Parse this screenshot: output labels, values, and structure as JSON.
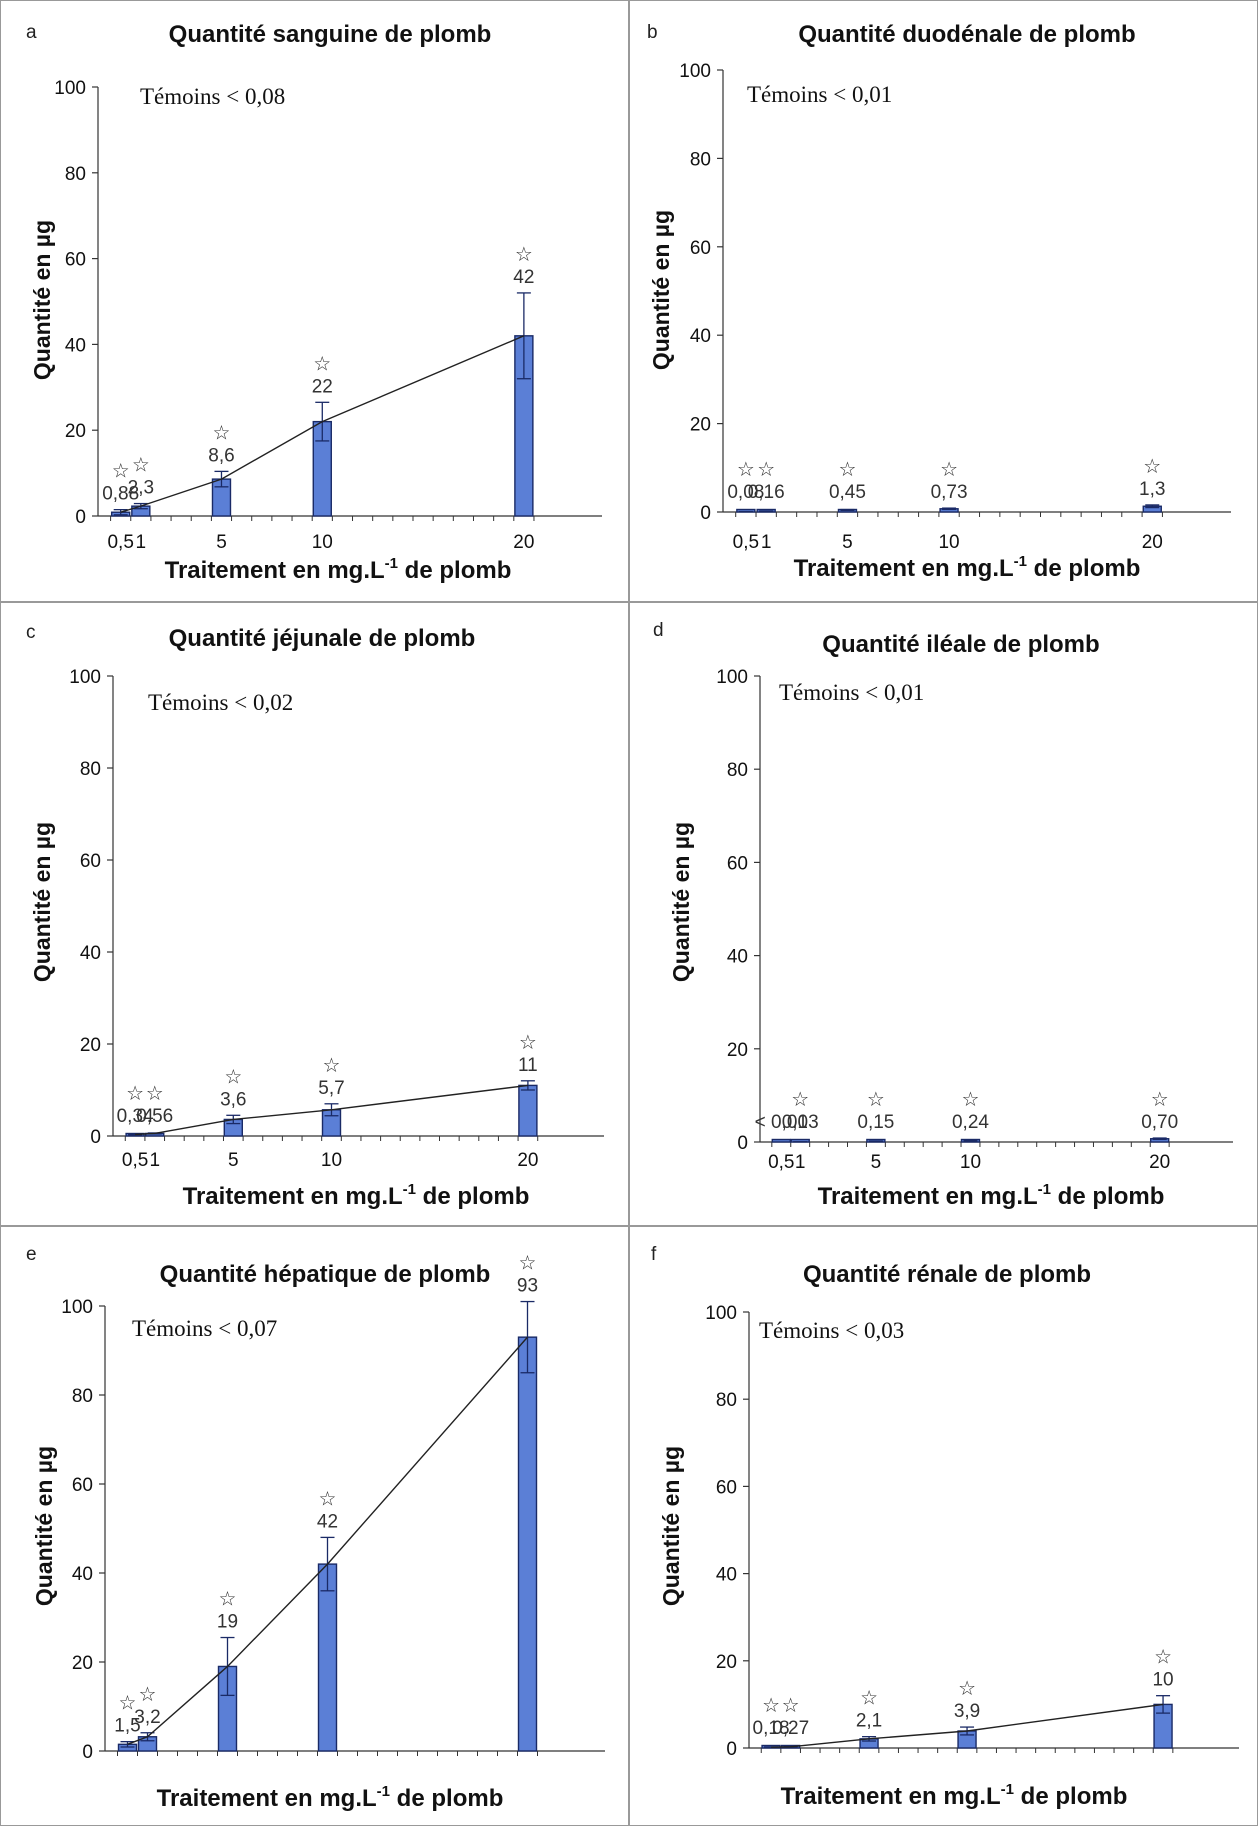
{
  "chart_data": [
    {
      "panel": "a",
      "type": "bar",
      "title": "Quantité sanguine de plomb",
      "ylabel": "Quantité en µg",
      "xlabel": "Traitement en mg.L-1 de plomb",
      "xlabel_main": "Traitement en mg.L",
      "xlabel_sup": "-1",
      "xlabel_tail": " de plomb",
      "ylim": [
        0,
        100
      ],
      "yticks": [
        0,
        20,
        40,
        60,
        80,
        100
      ],
      "x_tick_labels": [
        "0,5",
        "1",
        "5",
        "10",
        "20"
      ],
      "control_note": "Témoins < 0,08",
      "x": [
        0.5,
        1,
        5,
        10,
        20
      ],
      "values": [
        0.88,
        2.3,
        8.6,
        22,
        42
      ],
      "errors": [
        0.6,
        0.6,
        1.8,
        4.5,
        10
      ],
      "data_labels": [
        "0,88",
        "2,3",
        "8,6",
        "22",
        "42"
      ],
      "significance": [
        "☆",
        "☆",
        "☆",
        "☆",
        "☆"
      ],
      "trend_line": true
    },
    {
      "panel": "b",
      "type": "bar",
      "title": "Quantité duodénale de plomb",
      "ylabel": "Quantité en µg",
      "xlabel": "Traitement en mg.L-1 de plomb",
      "xlabel_main": "Traitement en mg.L",
      "xlabel_sup": "-1",
      "xlabel_tail": " de plomb",
      "ylim": [
        0,
        100
      ],
      "yticks": [
        0,
        20,
        40,
        60,
        80,
        100
      ],
      "x_tick_labels": [
        "0,5",
        "1",
        "5",
        "10",
        "20"
      ],
      "control_note": "Témoins < 0,01",
      "x": [
        0.5,
        1,
        5,
        10,
        20
      ],
      "values": [
        0.08,
        0.16,
        0.45,
        0.73,
        1.3
      ],
      "errors": [
        0.02,
        0.04,
        0.1,
        0.15,
        0.3
      ],
      "data_labels": [
        "0,08",
        "0,16",
        "0,45",
        "0,73",
        "1,3"
      ],
      "significance": [
        "☆",
        "☆",
        "☆",
        "☆",
        "☆"
      ],
      "trend_line": false
    },
    {
      "panel": "c",
      "type": "bar",
      "title": "Quantité jéjunale de plomb",
      "ylabel": "Quantité en µg",
      "xlabel": "Traitement en mg.L-1 de plomb",
      "xlabel_main": "Traitement en mg.L",
      "xlabel_sup": "-1",
      "xlabel_tail": " de plomb",
      "ylim": [
        0,
        100
      ],
      "yticks": [
        0,
        20,
        40,
        60,
        80,
        100
      ],
      "x_tick_labels": [
        "0,5",
        "1",
        "5",
        "10",
        "20"
      ],
      "control_note": "Témoins < 0,02",
      "x": [
        0.5,
        1,
        5,
        10,
        20
      ],
      "values": [
        0.34,
        0.56,
        3.6,
        5.7,
        11
      ],
      "errors": [
        0.1,
        0.1,
        0.9,
        1.3,
        1.0
      ],
      "data_labels": [
        "0,34",
        "0,56",
        "3,6",
        "5,7",
        "11"
      ],
      "significance": [
        "☆",
        "☆",
        "☆",
        "☆",
        "☆"
      ],
      "trend_line": true
    },
    {
      "panel": "d",
      "type": "bar",
      "title": "Quantité iléale de plomb",
      "ylabel": "Quantité en µg",
      "xlabel": "Traitement en mg.L-1 de plomb",
      "xlabel_main": "Traitement en mg.L",
      "xlabel_sup": "-1",
      "xlabel_tail": " de plomb",
      "ylim": [
        0,
        100
      ],
      "yticks": [
        0,
        20,
        40,
        60,
        80,
        100
      ],
      "x_tick_labels": [
        "0,5",
        "1",
        "5",
        "10",
        "20"
      ],
      "control_note": "Témoins < 0,01",
      "x": [
        0.5,
        1,
        5,
        10,
        20
      ],
      "values": [
        0.01,
        0.03,
        0.15,
        0.24,
        0.7
      ],
      "errors": [
        0,
        0.01,
        0.03,
        0.05,
        0.15
      ],
      "data_labels": [
        "< 0,01",
        "0,03",
        "0,15",
        "0,24",
        "0,70"
      ],
      "significance": [
        "",
        "☆",
        "☆",
        "☆",
        "☆"
      ],
      "trend_line": false
    },
    {
      "panel": "e",
      "type": "bar",
      "title": "Quantité hépatique de plomb",
      "ylabel": "Quantité en µg",
      "xlabel": "Traitement en mg.L-1 de plomb",
      "xlabel_main": "Traitement en mg.L",
      "xlabel_sup": "-1",
      "xlabel_tail": " de plomb",
      "ylim": [
        0,
        100
      ],
      "yticks": [
        0,
        20,
        40,
        60,
        80,
        100
      ],
      "x_tick_labels": [],
      "control_note": "Témoins < 0,07",
      "x": [
        0.5,
        1,
        5,
        10,
        20
      ],
      "values": [
        1.5,
        3.2,
        19,
        42,
        93
      ],
      "errors": [
        0.6,
        0.9,
        6.5,
        6,
        8
      ],
      "data_labels": [
        "1,5",
        "3,2",
        "19",
        "42",
        "93"
      ],
      "significance": [
        "☆",
        "☆",
        "☆",
        "☆",
        "☆"
      ],
      "trend_line": true
    },
    {
      "panel": "f",
      "type": "bar",
      "title": "Quantité rénale de plomb",
      "ylabel": "Quantité en µg",
      "xlabel": "Traitement en mg.L-1 de plomb",
      "xlabel_main": "Traitement en mg.L",
      "xlabel_sup": "-1",
      "xlabel_tail": " de plomb",
      "ylim": [
        0,
        100
      ],
      "yticks": [
        0,
        20,
        40,
        60,
        80,
        100
      ],
      "x_tick_labels": [],
      "control_note": "Témoins < 0,03",
      "x": [
        0.5,
        1,
        5,
        10,
        20
      ],
      "values": [
        0.18,
        0.27,
        2.1,
        3.9,
        10
      ],
      "errors": [
        0.05,
        0.08,
        0.5,
        0.9,
        2
      ],
      "data_labels": [
        "0,18",
        "0,27",
        "2,1",
        "3,9",
        "10"
      ],
      "significance": [
        "☆",
        "☆",
        "☆",
        "☆",
        "☆"
      ],
      "trend_line": true
    }
  ],
  "colors": {
    "bar_fill": "#5b7fd6",
    "bar_stroke": "#1a2a66",
    "axis": "#333333",
    "trend_line": "#222222",
    "border": "#999999"
  }
}
